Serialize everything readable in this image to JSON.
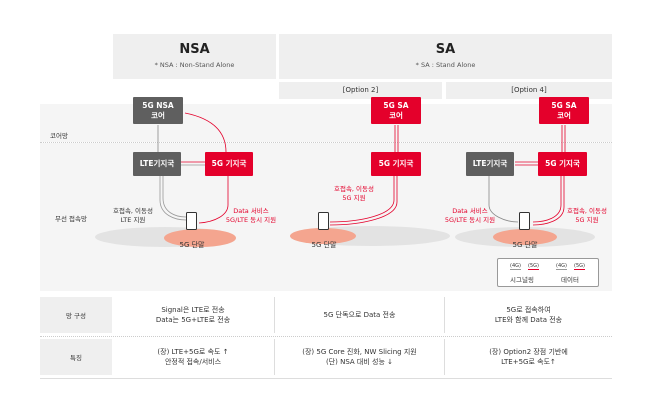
{
  "header": {
    "nsa": {
      "title": "NSA",
      "subtitle": "* NSA : Non-Stand Alone"
    },
    "sa": {
      "title": "SA",
      "subtitle": "* SA : Stand Alone"
    },
    "options": [
      "[Option 2]",
      "[Option 4]"
    ]
  },
  "rows": {
    "core": "코어망",
    "radio": "무선 접속망"
  },
  "nodes": {
    "nsa_core": [
      "5G NSA",
      "코어"
    ],
    "sa_core": [
      "5G SA",
      "코어"
    ],
    "lte_bs": "LTE기지국",
    "g5_bs": "5G 기지국",
    "terminal": "5G 단말"
  },
  "annotations": {
    "nsa_left": [
      "호접속, 이동성",
      "LTE 지원"
    ],
    "nsa_right": [
      "Data 서비스",
      "5G/LTE 동시 지원"
    ],
    "opt2": [
      "호접속, 이동성",
      "5G 지원"
    ],
    "opt4_left": [
      "Data 서비스",
      "5G/LTE 동시 지원"
    ],
    "opt4_right": [
      "호접속, 이동성",
      "5G 지원"
    ]
  },
  "legend": {
    "g4": "(4G)",
    "g5": "(5G)",
    "signaling": "시그널링",
    "data": "데이터"
  },
  "table": {
    "rows": [
      {
        "label": "망 구성",
        "cells": [
          [
            "Signal은 LTE로 전송",
            "Data는 5G+LTE로 전송"
          ],
          [
            "5G 단독으로 Data 전송"
          ],
          [
            "5G로 접속하여",
            "LTE와 함께 Data 전송"
          ]
        ]
      },
      {
        "label": "특징",
        "cells": [
          [
            "(장) LTE+5G로 속도 ↑",
            "안정적 접속/서비스"
          ],
          [
            "(장) 5G Core 진화, NW Slicing 지원",
            "(단) NSA 대비 성능 ↓"
          ],
          [
            "(장) Option2 장점 기반에",
            "LTE+5G로 속도↑"
          ]
        ]
      }
    ]
  },
  "colors": {
    "red": "#e4002b",
    "gray": "#5f5f5f",
    "ellipse": "#e6e6e6",
    "coverage": "#f4a58f"
  }
}
